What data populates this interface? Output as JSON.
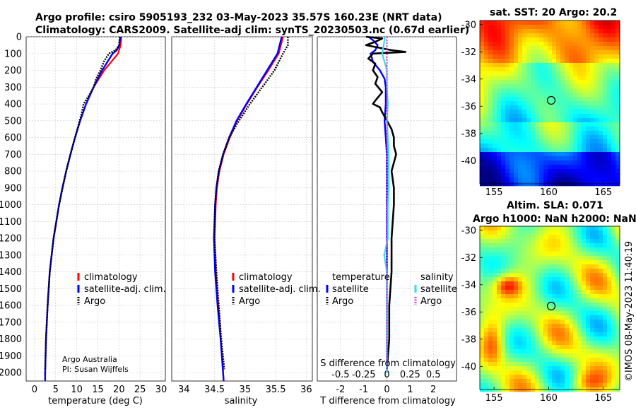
{
  "header": {
    "line1": "Argo profile: csiro 5905193_232 03-May-2023 35.57S 160.23E (NRT data)",
    "line2": "Climatology: CARS2009. Satellite-adj clim: synTS_20230503.nc (0.67d earlier)"
  },
  "colors": {
    "climatology": "#ff0000",
    "satellite": "#0000ff",
    "argo": "#000000",
    "sal_satellite": "#33ddee",
    "sal_argo": "#dd33dd"
  },
  "chart_data": [
    {
      "type": "line",
      "title": "",
      "xlabel": "temperature (deg C)",
      "ylabel": "",
      "xlim": [
        -2,
        31
      ],
      "ylim": [
        0,
        2050
      ],
      "xticks": [
        "0",
        "5",
        "10",
        "15",
        "20",
        "25",
        "30"
      ],
      "yticks": [
        "0",
        "100",
        "200",
        "300",
        "400",
        "500",
        "600",
        "700",
        "800",
        "900",
        "1000",
        "1100",
        "1200",
        "1300",
        "1400",
        "1500",
        "1600",
        "1700",
        "1800",
        "1900",
        "2000"
      ],
      "legend": [
        "climatology",
        "satellite-adj. clim.",
        "Argo"
      ],
      "series": [
        {
          "name": "climatology",
          "depth": [
            0,
            50,
            100,
            200,
            300,
            400,
            500,
            600,
            700,
            800,
            900,
            1000,
            1200,
            1400,
            1600,
            1800,
            2000,
            2050
          ],
          "values": [
            20.6,
            20.4,
            19.8,
            16.5,
            14.0,
            12.2,
            10.8,
            9.6,
            8.5,
            7.5,
            6.6,
            5.8,
            4.5,
            3.6,
            3.1,
            2.7,
            2.5,
            2.5
          ]
        },
        {
          "name": "satellite-adj. clim.",
          "depth": [
            0,
            50,
            80,
            100,
            200,
            300,
            400,
            500,
            600,
            700,
            800,
            900,
            1000,
            1200,
            1400,
            1600,
            1800,
            2000,
            2050
          ],
          "values": [
            20.3,
            20.1,
            19.5,
            18.5,
            16.0,
            14.0,
            12.2,
            10.8,
            9.6,
            8.5,
            7.5,
            6.6,
            5.8,
            4.5,
            3.6,
            3.1,
            2.7,
            2.5,
            2.5
          ]
        },
        {
          "name": "Argo",
          "depth": [
            0,
            50,
            80,
            100,
            150,
            200,
            250,
            300,
            350,
            400,
            450,
            500,
            600,
            700,
            800,
            1000,
            1200,
            1400,
            1600,
            1800,
            1980
          ],
          "values": [
            20.2,
            20.0,
            19.2,
            17.6,
            16.4,
            15.6,
            14.6,
            14.0,
            12.9,
            11.6,
            11.2,
            10.7,
            9.6,
            8.5,
            7.5,
            5.8,
            4.5,
            3.6,
            3.1,
            2.7,
            2.5
          ]
        }
      ]
    },
    {
      "type": "line",
      "title": "",
      "xlabel": "salinity",
      "ylabel": "",
      "xlim": [
        33.8,
        36.1
      ],
      "ylim": [
        0,
        2050
      ],
      "xticks": [
        "34",
        "34.5",
        "35",
        "35.5",
        "36"
      ],
      "legend": [
        "climatology",
        "satellite-adj. clim.",
        "Argo"
      ],
      "series": [
        {
          "name": "climatology",
          "depth": [
            0,
            100,
            200,
            300,
            400,
            500,
            600,
            700,
            800,
            900,
            1000,
            1200,
            1400,
            1600,
            1800,
            2000,
            2050
          ],
          "values": [
            35.62,
            35.55,
            35.38,
            35.2,
            35.03,
            34.87,
            34.75,
            34.65,
            34.58,
            34.54,
            34.52,
            34.5,
            34.52,
            34.56,
            34.6,
            34.64,
            34.65
          ]
        },
        {
          "name": "satellite-adj. clim.",
          "depth": [
            0,
            100,
            200,
            300,
            400,
            500,
            600,
            700,
            800,
            900,
            1000,
            1200,
            1400,
            1600,
            1800,
            2000,
            2050
          ],
          "values": [
            35.6,
            35.53,
            35.36,
            35.19,
            35.02,
            34.86,
            34.74,
            34.64,
            34.57,
            34.53,
            34.51,
            34.49,
            34.51,
            34.55,
            34.6,
            34.64,
            34.65
          ]
        },
        {
          "name": "Argo",
          "depth": [
            0,
            50,
            100,
            200,
            300,
            400,
            500,
            600,
            700,
            800,
            900,
            1000,
            1200,
            1400,
            1600,
            1800,
            1980
          ],
          "values": [
            35.7,
            35.7,
            35.62,
            35.48,
            35.28,
            35.08,
            34.9,
            34.74,
            34.64,
            34.57,
            34.53,
            34.51,
            34.5,
            34.53,
            34.57,
            34.61,
            34.66
          ]
        }
      ]
    },
    {
      "type": "line",
      "title": "",
      "xlabel": "T difference from climatology",
      "xlabel_top": "S difference from climatology",
      "xlim": [
        -3,
        3
      ],
      "ylim": [
        0,
        2050
      ],
      "xticks": [
        "-2",
        "-1",
        "0",
        "1",
        "2"
      ],
      "xticks_top": [
        "-0.5",
        "-0.25",
        "0",
        "0.25",
        "0.5"
      ],
      "legend_temperature_title": "temperature",
      "legend_salinity_title": "salinity",
      "legend_temperature": [
        "satellite",
        "Argo"
      ],
      "legend_salinity": [
        "satellite",
        "Argo"
      ],
      "series": [
        {
          "name": "temperature satellite",
          "depth": [
            0,
            20,
            50,
            80,
            100,
            150,
            200,
            250,
            300,
            400,
            500,
            600,
            700,
            800,
            1000,
            1300,
            1500,
            2000
          ],
          "values": [
            -0.8,
            -0.6,
            -0.4,
            -0.5,
            -0.7,
            -0.6,
            -0.3,
            -0.1,
            -0.05,
            -0.05,
            -0.1,
            -0.05,
            0.0,
            0.0,
            0.0,
            0.0,
            0.0,
            0.0
          ]
        },
        {
          "name": "temperature Argo",
          "depth": [
            0,
            10,
            30,
            50,
            80,
            90,
            100,
            130,
            160,
            200,
            240,
            280,
            330,
            380,
            400,
            420,
            450,
            500,
            550,
            600,
            650,
            700,
            800,
            900,
            1000,
            1200,
            1400,
            1600,
            1800,
            1980
          ],
          "values": [
            -0.9,
            -0.2,
            -0.5,
            -0.9,
            0.2,
            0.8,
            -0.6,
            -0.8,
            -0.5,
            -0.6,
            -0.4,
            -0.5,
            -0.2,
            -0.5,
            -0.6,
            -0.3,
            -0.2,
            0.0,
            0.2,
            0.3,
            0.3,
            0.4,
            0.2,
            0.3,
            0.3,
            0.2,
            0.2,
            0.1,
            0.1,
            0.0
          ]
        },
        {
          "name": "salinity satellite",
          "depth": [
            0,
            100,
            200,
            300,
            400,
            500,
            600,
            700,
            800,
            900,
            1000,
            1200,
            1300,
            1400,
            1600,
            1800,
            2000
          ],
          "values": [
            -0.02,
            -0.05,
            0.0,
            0.0,
            0.01,
            0.0,
            0.01,
            0.02,
            0.02,
            0.02,
            0.01,
            0.01,
            -0.03,
            0.0,
            0.0,
            0.0,
            0.0
          ]
        },
        {
          "name": "salinity Argo",
          "depth": [
            0,
            1980
          ],
          "values": [
            0.0,
            0.0
          ]
        }
      ]
    },
    {
      "type": "heatmap",
      "title": "sat. SST: 20 Argo: 20.2",
      "xticks": [
        "155",
        "160",
        "165"
      ],
      "yticks": [
        "-30",
        "-32",
        "-34",
        "-36",
        "-38",
        "-40"
      ],
      "xlim": [
        153.7,
        166.5
      ],
      "ylim": [
        -41.7,
        -29.7
      ],
      "marker": {
        "lon": 160.23,
        "lat": -35.57
      }
    },
    {
      "type": "heatmap",
      "title": "Altim. SLA: 0.071",
      "subtitle": "Argo h1000: NaN h2000: NaN",
      "xticks": [
        "155",
        "160",
        "165"
      ],
      "yticks": [
        "-30",
        "-32",
        "-34",
        "-36",
        "-38",
        "-40"
      ],
      "xlim": [
        153.7,
        166.5
      ],
      "ylim": [
        -41.7,
        -29.7
      ],
      "marker": {
        "lon": 160.23,
        "lat": -35.57
      }
    }
  ],
  "credits": {
    "line1": "Argo Australia",
    "line2": "PI: Susan Wijffels"
  },
  "watermark": "©IMOS 08-May-2023 11:40:19"
}
